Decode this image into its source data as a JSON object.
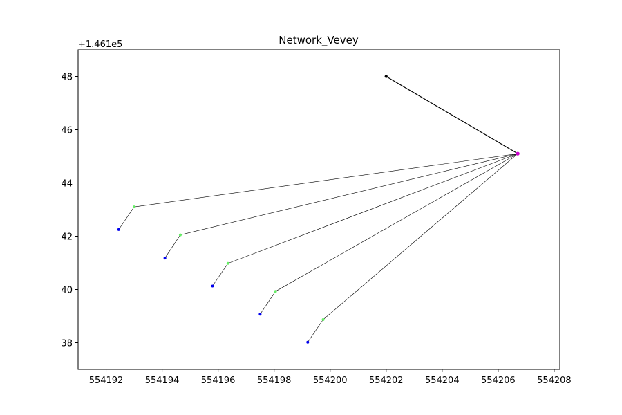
{
  "chart_data": {
    "type": "scatter",
    "title": "Network_Vevey",
    "xlabel": "",
    "ylabel": "",
    "y_offset_label": "+1.461e5",
    "y_offset": 146100,
    "xlim": [
      554191,
      554208.2
    ],
    "ylim": [
      37,
      49
    ],
    "xticks": [
      554192,
      554194,
      554196,
      554198,
      554200,
      554202,
      554204,
      554206,
      554208
    ],
    "yticks": [
      38,
      40,
      42,
      44,
      46,
      48
    ],
    "grid": false,
    "colors": {
      "hub": "#cc00cc",
      "source": "#000000",
      "green_node": "#66ee66",
      "blue_node": "#0000ee",
      "edge": "#000000"
    },
    "hub": {
      "x": 554206.7,
      "y": 45.1
    },
    "source_node": {
      "x": 554202.0,
      "y": 48.0
    },
    "green_nodes": [
      {
        "x": 554193.0,
        "y": 43.1
      },
      {
        "x": 554194.65,
        "y": 42.05
      },
      {
        "x": 554196.35,
        "y": 40.98
      },
      {
        "x": 554198.05,
        "y": 39.93
      },
      {
        "x": 554199.75,
        "y": 38.87
      }
    ],
    "blue_nodes": [
      {
        "x": 554192.45,
        "y": 42.25
      },
      {
        "x": 554194.1,
        "y": 41.18
      },
      {
        "x": 554195.8,
        "y": 40.13
      },
      {
        "x": 554197.5,
        "y": 39.07
      },
      {
        "x": 554199.2,
        "y": 38.02
      }
    ]
  }
}
